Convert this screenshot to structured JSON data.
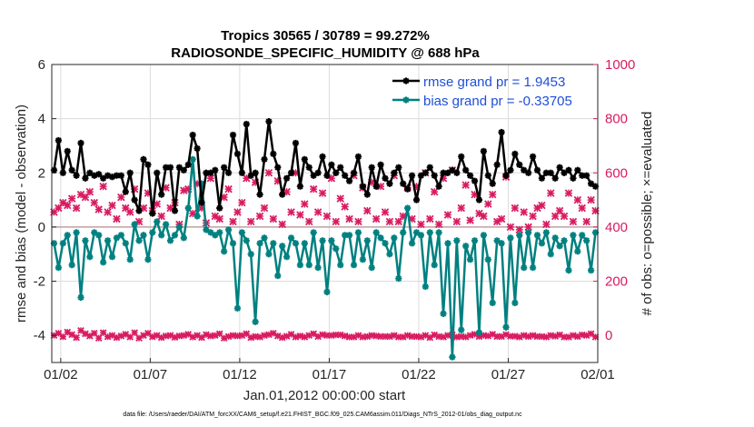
{
  "colors": {
    "rmse": "#000000",
    "bias": "#008080",
    "obs": "#d81b60",
    "zero_line": "#c0a0a0",
    "legend_text": "#1f4fd8"
  },
  "chart_data": {
    "type": "line",
    "title": "Tropics 30565 / 30789 = 99.272%",
    "subtitle": "RADIOSONDE_SPECIFIC_HUMIDITY @ 688 hPa",
    "xlabel": "Jan.01,2012 00:00:00 start",
    "ylabel": "rmse and bias (model - observation)",
    "ylabel_right": "# of obs: o=possible; ×=evaluated",
    "footer": "data file: /Users/raeder/DAI/ATM_forcXX/CAM6_setup/f.e21.FHIST_BGC.f09_025.CAM6assim.011/Diags_NTrS_2012-01/obs_diag_output.nc",
    "xlim": [
      1.5,
      32.0
    ],
    "ylim": [
      -5,
      6
    ],
    "ylim_right": [
      -100,
      1000
    ],
    "x_ticks": [
      2,
      7,
      12,
      17,
      22,
      27,
      32
    ],
    "x_tick_labels": [
      "01/02",
      "01/07",
      "01/12",
      "01/17",
      "01/22",
      "01/27",
      "02/01"
    ],
    "y_ticks": [
      -4,
      -2,
      0,
      2,
      4,
      6
    ],
    "y_tick_labels": [
      "-4",
      "-2",
      "0",
      "2",
      "4",
      "6"
    ],
    "y_ticks_right": [
      0,
      200,
      400,
      600,
      800,
      1000
    ],
    "y_tick_labels_right": [
      "0",
      "200",
      "400",
      "600",
      "800",
      "1000"
    ],
    "grid": true,
    "legend_position": "top-right",
    "x": [
      1.625,
      1.875,
      2.125,
      2.375,
      2.625,
      2.875,
      3.125,
      3.375,
      3.625,
      3.875,
      4.125,
      4.375,
      4.625,
      4.875,
      5.125,
      5.375,
      5.625,
      5.875,
      6.125,
      6.375,
      6.625,
      6.875,
      7.125,
      7.375,
      7.625,
      7.875,
      8.125,
      8.375,
      8.625,
      8.875,
      9.125,
      9.375,
      9.625,
      9.875,
      10.125,
      10.375,
      10.625,
      10.875,
      11.125,
      11.375,
      11.625,
      11.875,
      12.125,
      12.375,
      12.625,
      12.875,
      13.125,
      13.375,
      13.625,
      13.875,
      14.125,
      14.375,
      14.625,
      14.875,
      15.125,
      15.375,
      15.625,
      15.875,
      16.125,
      16.375,
      16.625,
      16.875,
      17.125,
      17.375,
      17.625,
      17.875,
      18.125,
      18.375,
      18.625,
      18.875,
      19.125,
      19.375,
      19.625,
      19.875,
      20.125,
      20.375,
      20.625,
      20.875,
      21.125,
      21.375,
      21.625,
      21.875,
      22.125,
      22.375,
      22.625,
      22.875,
      23.125,
      23.375,
      23.625,
      23.875,
      24.125,
      24.375,
      24.625,
      24.875,
      25.125,
      25.375,
      25.625,
      25.875,
      26.125,
      26.375,
      26.625,
      26.875,
      27.125,
      27.375,
      27.625,
      27.875,
      28.125,
      28.375,
      28.625,
      28.875,
      29.125,
      29.375,
      29.625,
      29.875,
      30.125,
      30.375,
      30.625,
      30.875,
      31.125,
      31.375,
      31.625,
      31.875
    ],
    "series": [
      {
        "name": "rmse grand pr = 1.9453",
        "axis": "left",
        "marker": "*",
        "values": [
          2.1,
          3.2,
          2.0,
          2.8,
          2.1,
          1.9,
          3.1,
          1.8,
          2.0,
          1.9,
          1.95,
          1.8,
          1.9,
          1.85,
          1.9,
          1.9,
          1.3,
          2.0,
          1.0,
          0.6,
          2.5,
          2.3,
          0.5,
          2.0,
          1.2,
          2.2,
          2.2,
          0.6,
          2.2,
          2.1,
          2.3,
          3.4,
          2.9,
          0.9,
          2.0,
          2.0,
          2.1,
          0.7,
          2.2,
          2.0,
          3.4,
          2.7,
          2.0,
          3.8,
          1.9,
          2.0,
          1.2,
          2.5,
          3.9,
          2.7,
          2.2,
          1.2,
          1.8,
          2.0,
          3.1,
          1.5,
          2.5,
          2.2,
          1.9,
          2.0,
          2.6,
          1.9,
          2.3,
          2.0,
          2.2,
          1.9,
          1.7,
          2.0,
          2.6,
          1.5,
          1.2,
          2.2,
          1.5,
          2.3,
          1.8,
          1.6,
          2.0,
          2.2,
          1.6,
          1.4,
          1.9,
          1.0,
          1.9,
          2.0,
          2.2,
          1.9,
          1.5,
          2.0,
          2.0,
          2.1,
          2.0,
          2.6,
          2.1,
          1.9,
          1.7,
          1.0,
          2.8,
          1.9,
          1.6,
          2.3,
          3.5,
          1.9,
          2.1,
          2.7,
          2.3,
          2.1,
          2.0,
          2.6,
          2.1,
          1.8,
          2.0,
          2.0,
          1.8,
          2.2,
          2.0,
          2.1,
          1.8,
          2.1,
          1.9,
          1.9,
          1.6,
          1.5
        ]
      },
      {
        "name": "bias grand pr = -0.33705",
        "axis": "left",
        "marker": "*",
        "values": [
          -0.6,
          -1.5,
          -0.6,
          -0.3,
          -1.4,
          -0.2,
          -2.6,
          -0.5,
          -1.1,
          -0.2,
          -0.3,
          -1.3,
          -0.5,
          -1.1,
          -0.4,
          -0.3,
          -0.6,
          -1.2,
          0.1,
          -0.5,
          -0.3,
          -1.2,
          -0.2,
          0.2,
          -0.3,
          0.1,
          -0.5,
          -0.3,
          0.0,
          -0.4,
          0.7,
          2.5,
          0.4,
          1.6,
          -0.1,
          -0.2,
          -0.3,
          -0.2,
          -0.9,
          -0.1,
          -0.6,
          -3.0,
          -0.2,
          -0.5,
          -1.0,
          -3.5,
          -0.6,
          -0.4,
          -1.0,
          -0.6,
          -1.8,
          -0.7,
          -1.1,
          -0.4,
          -0.6,
          -1.4,
          -0.6,
          -1.4,
          -0.2,
          -1.5,
          -0.5,
          -2.4,
          -0.5,
          -0.8,
          -1.4,
          -0.3,
          -0.3,
          -1.4,
          -0.2,
          -1.2,
          -0.5,
          -1.5,
          -0.2,
          -0.4,
          -0.6,
          -1.0,
          -0.4,
          -1.9,
          -0.2,
          0.7,
          -0.6,
          -0.2,
          -0.3,
          -2.2,
          -0.2,
          -1.4,
          -0.2,
          -3.2,
          -0.6,
          -4.8,
          -0.5,
          -3.8,
          -0.7,
          -1.2,
          -0.5,
          -3.9,
          -0.3,
          -1.2,
          -2.8,
          -0.5,
          -0.6,
          -3.7,
          -0.4,
          -2.8,
          -0.3,
          -1.5,
          -0.2,
          -1.5,
          -0.3,
          -0.6,
          -0.2,
          -1.0,
          -0.4,
          -0.7,
          -0.5,
          -1.6,
          -0.3,
          -0.9,
          -0.3,
          -0.5,
          -1.6,
          -0.2
        ]
      },
      {
        "name": "# of obs evaluated",
        "axis": "right",
        "marker": "x",
        "values": [
          455,
          470,
          490,
          480,
          505,
          470,
          520,
          510,
          530,
          490,
          465,
          550,
          455,
          480,
          430,
          510,
          470,
          455,
          540,
          420,
          470,
          525,
          460,
          485,
          440,
          545,
          470,
          490,
          410,
          535,
          540,
          450,
          560,
          470,
          415,
          580,
          440,
          430,
          510,
          540,
          420,
          455,
          490,
          580,
          420,
          565,
          440,
          470,
          600,
          430,
          570,
          410,
          530,
          455,
          600,
          445,
          485,
          420,
          540,
          455,
          525,
          440,
          580,
          420,
          505,
          475,
          430,
          590,
          420,
          545,
          460,
          565,
          430,
          550,
          455,
          420,
          590,
          420,
          440,
          545,
          430,
          550,
          410,
          600,
          430,
          530,
          410,
          580,
          445,
          610,
          420,
          470,
          555,
          425,
          520,
          450,
          440,
          485,
          520,
          420,
          430,
          585,
          400,
          470,
          390,
          455,
          400,
          440,
          470,
          480,
          410,
          525,
          440,
          460,
          440,
          525,
          420,
          500,
          470,
          420,
          500,
          460
        ]
      },
      {
        "name": "# of obs possible",
        "axis": "right",
        "marker": "o",
        "values": [
          0,
          8,
          -5,
          12,
          3,
          -8,
          18,
          6,
          -2,
          8,
          -10,
          10,
          -5,
          0,
          -8,
          -2,
          4,
          -6,
          10,
          -10,
          0,
          8,
          -5,
          0,
          -8,
          -2,
          0,
          -7,
          -2,
          0,
          4,
          -6,
          0,
          -8,
          3,
          -2,
          0,
          6,
          -10,
          -4,
          0,
          -2,
          0,
          6,
          -8,
          -4,
          -6,
          0,
          3,
          8,
          -2,
          -8,
          -3,
          4,
          -6,
          -2,
          -6,
          0,
          6,
          -4,
          3,
          0,
          0,
          2,
          2,
          -2,
          -6,
          -6,
          0,
          -6,
          -4,
          0,
          -2,
          -4,
          -4,
          -4,
          0,
          -6,
          -6,
          0,
          -4,
          -4,
          -6,
          0,
          -8,
          2,
          -4,
          -6,
          0,
          2,
          -6,
          -4,
          -6,
          0,
          4,
          -4,
          0,
          -2,
          4,
          -4,
          -4,
          3,
          -3,
          -3,
          -6,
          0,
          -4,
          0,
          -4,
          -4,
          -6,
          0,
          -3,
          2,
          -6,
          -6,
          0,
          -4,
          2,
          0,
          6,
          -6
        ]
      }
    ]
  }
}
